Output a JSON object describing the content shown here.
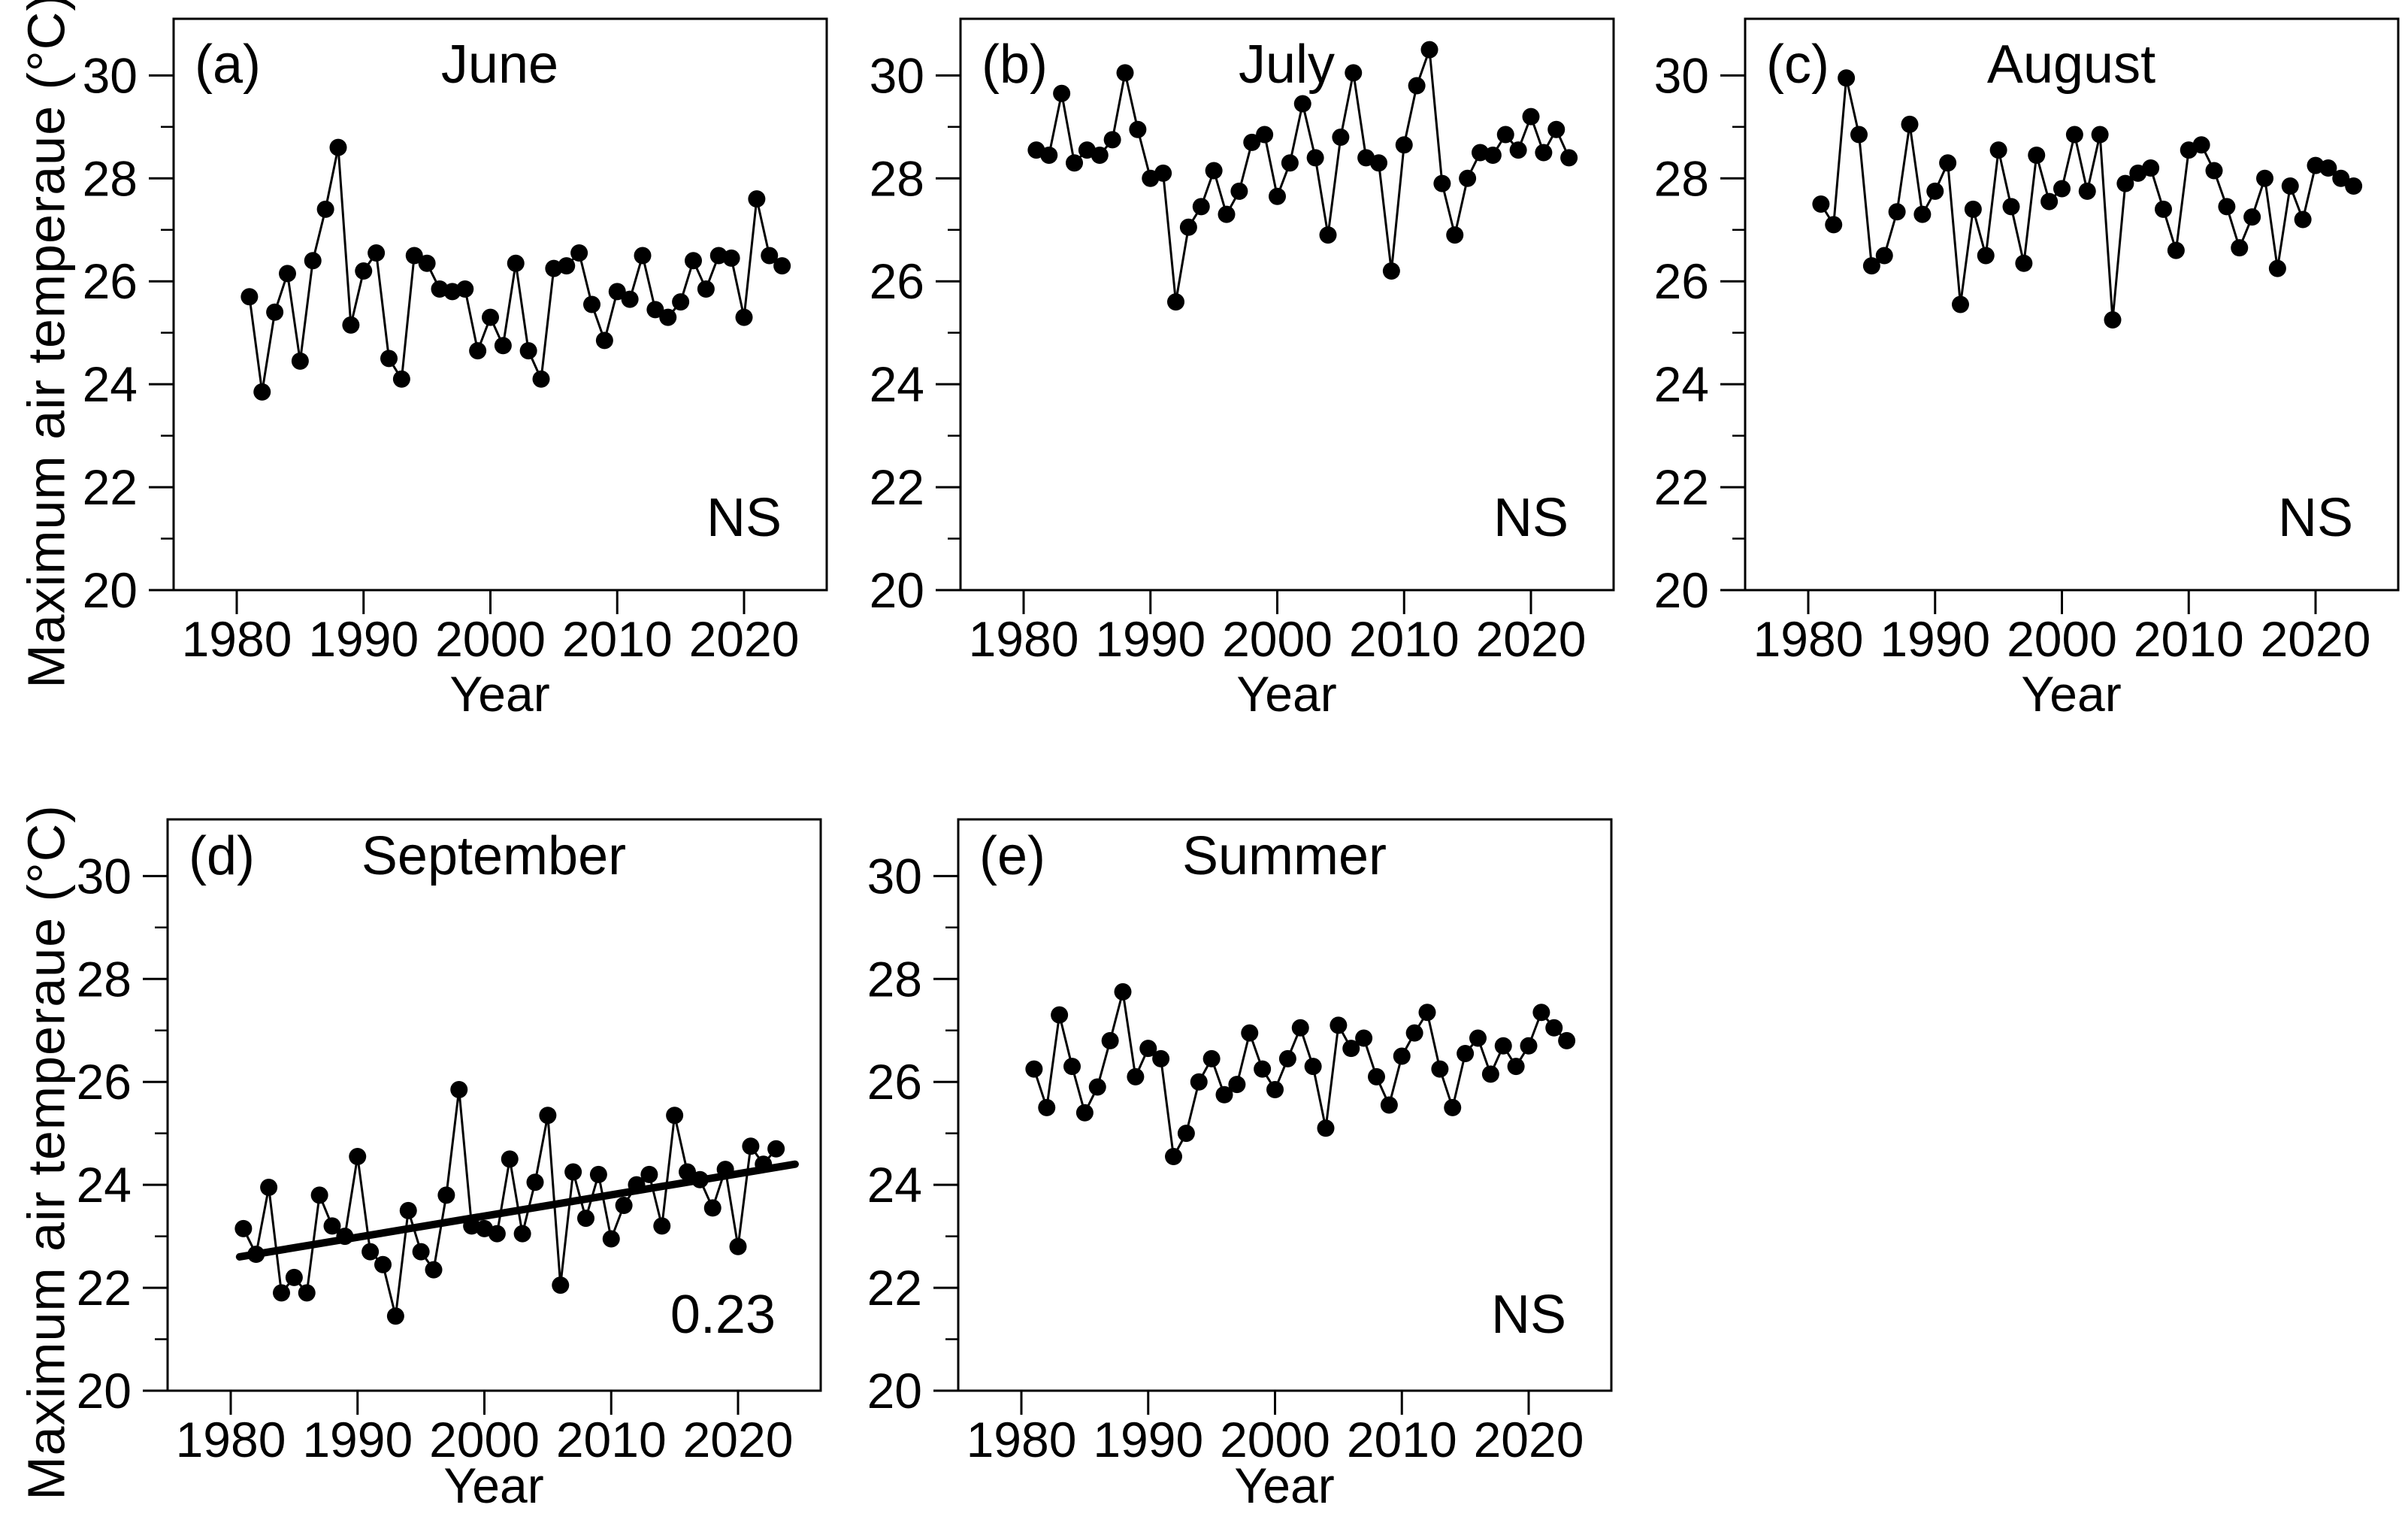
{
  "figure": {
    "y_axis_title": "Maximum air temperaue (°C)",
    "x_axis_title": "Year",
    "background_color": "#ffffff",
    "ink_color": "#000000",
    "years": [
      1981,
      1982,
      1983,
      1984,
      1985,
      1986,
      1987,
      1988,
      1989,
      1990,
      1991,
      1992,
      1993,
      1994,
      1995,
      1996,
      1997,
      1998,
      1999,
      2000,
      2001,
      2002,
      2003,
      2004,
      2005,
      2006,
      2007,
      2008,
      2009,
      2010,
      2011,
      2012,
      2013,
      2014,
      2015,
      2016,
      2017,
      2018,
      2019,
      2020,
      2021,
      2022,
      2023
    ]
  },
  "chart_data": [
    {
      "type": "line",
      "panel_label": "(a)",
      "title": "June",
      "annotation": "NS",
      "xlabel": "Year",
      "ylabel": "Maximum air temperaue (°C)",
      "x_ticks": [
        1980,
        1990,
        2000,
        2010,
        2020
      ],
      "y_ticks": [
        20,
        22,
        24,
        26,
        28,
        30
      ],
      "y_minor_ticks": [
        21,
        23,
        25,
        27,
        29
      ],
      "xlim": [
        1975,
        2026.5
      ],
      "ylim": [
        20,
        31.1
      ],
      "marker": "filled-circle",
      "values": [
        25.7,
        23.85,
        25.4,
        26.15,
        24.45,
        26.4,
        27.4,
        28.6,
        25.15,
        26.2,
        26.55,
        24.5,
        24.1,
        26.5,
        26.35,
        25.85,
        25.8,
        25.85,
        24.65,
        25.3,
        24.75,
        26.35,
        24.65,
        24.1,
        26.25,
        26.3,
        26.55,
        25.55,
        24.85,
        25.8,
        25.65,
        26.5,
        25.45,
        25.3,
        25.6,
        26.4,
        25.85,
        26.5,
        26.45,
        25.3,
        27.6,
        26.5,
        26.3
      ],
      "trend_line": null
    },
    {
      "type": "line",
      "panel_label": "(b)",
      "title": "July",
      "annotation": "NS",
      "xlabel": "Year",
      "ylabel": "Maximum air temperaue (°C)",
      "x_ticks": [
        1980,
        1990,
        2000,
        2010,
        2020
      ],
      "y_ticks": [
        20,
        22,
        24,
        26,
        28,
        30
      ],
      "y_minor_ticks": [
        21,
        23,
        25,
        27,
        29
      ],
      "xlim": [
        1975,
        2026.5
      ],
      "ylim": [
        20,
        31.1
      ],
      "marker": "filled-circle",
      "values": [
        28.55,
        28.45,
        29.65,
        28.3,
        28.55,
        28.45,
        28.75,
        30.05,
        28.95,
        28.0,
        28.1,
        25.6,
        27.05,
        27.45,
        28.15,
        27.3,
        27.75,
        28.7,
        28.85,
        27.65,
        28.3,
        29.45,
        28.4,
        26.9,
        28.8,
        30.05,
        28.4,
        28.3,
        26.2,
        28.65,
        29.8,
        30.5,
        27.9,
        26.9,
        28.0,
        28.5,
        28.45,
        28.85,
        28.55,
        29.2,
        28.5,
        28.95,
        28.4
      ],
      "trend_line": null
    },
    {
      "type": "line",
      "panel_label": "(c)",
      "title": "August",
      "annotation": "NS",
      "xlabel": "Year",
      "ylabel": "Maximum air temperaue (°C)",
      "x_ticks": [
        1980,
        1990,
        2000,
        2010,
        2020
      ],
      "y_ticks": [
        20,
        22,
        24,
        26,
        28,
        30
      ],
      "y_minor_ticks": [
        21,
        23,
        25,
        27,
        29
      ],
      "xlim": [
        1975,
        2026.5
      ],
      "ylim": [
        20,
        31.1
      ],
      "marker": "filled-circle",
      "values": [
        27.5,
        27.1,
        29.95,
        28.85,
        26.3,
        26.5,
        27.35,
        29.05,
        27.3,
        27.75,
        28.3,
        25.55,
        27.4,
        26.5,
        28.55,
        27.45,
        26.35,
        28.45,
        27.55,
        27.8,
        28.85,
        27.75,
        28.85,
        25.25,
        27.9,
        28.1,
        28.2,
        27.4,
        26.6,
        28.55,
        28.65,
        28.15,
        27.45,
        26.65,
        27.25,
        28.0,
        26.25,
        27.85,
        27.2,
        28.25,
        28.2,
        28.0,
        27.85
      ],
      "trend_line": null
    },
    {
      "type": "line",
      "panel_label": "(d)",
      "title": "September",
      "annotation": "0.23",
      "xlabel": "Year",
      "ylabel": "Maximum air temperaue (°C)",
      "x_ticks": [
        1980,
        1990,
        2000,
        2010,
        2020
      ],
      "y_ticks": [
        20,
        22,
        24,
        26,
        28,
        30
      ],
      "y_minor_ticks": [
        21,
        23,
        25,
        27,
        29
      ],
      "xlim": [
        1975,
        2026.5
      ],
      "ylim": [
        20,
        31.1
      ],
      "marker": "filled-circle",
      "values": [
        23.15,
        22.65,
        23.95,
        21.9,
        22.2,
        21.9,
        23.8,
        23.2,
        23.0,
        24.55,
        22.7,
        22.45,
        21.45,
        23.5,
        22.7,
        22.35,
        23.8,
        25.85,
        23.2,
        23.15,
        23.05,
        24.5,
        23.05,
        24.05,
        25.35,
        22.05,
        24.25,
        23.35,
        24.2,
        22.95,
        23.6,
        24.0,
        24.2,
        23.2,
        25.35,
        24.25,
        24.1,
        23.55,
        24.3,
        22.8,
        24.75,
        24.4,
        24.7
      ],
      "trend_line": {
        "x1": 1980.7,
        "y1": 22.6,
        "x2": 2024.5,
        "y2": 24.4,
        "slope_label": "0.23"
      }
    },
    {
      "type": "line",
      "panel_label": "(e)",
      "title": "Summer",
      "annotation": "NS",
      "xlabel": "Year",
      "ylabel": "Maximum air temperaue (°C)",
      "x_ticks": [
        1980,
        1990,
        2000,
        2010,
        2020
      ],
      "y_ticks": [
        20,
        22,
        24,
        26,
        28,
        30
      ],
      "y_minor_ticks": [
        21,
        23,
        25,
        27,
        29
      ],
      "xlim": [
        1975,
        2026.5
      ],
      "ylim": [
        20,
        31.1
      ],
      "marker": "filled-circle",
      "values": [
        26.25,
        25.5,
        27.3,
        26.3,
        25.4,
        25.9,
        26.8,
        27.75,
        26.1,
        26.65,
        26.45,
        24.55,
        25.0,
        26.0,
        26.45,
        25.75,
        25.95,
        26.95,
        26.25,
        25.85,
        26.45,
        27.05,
        26.3,
        25.1,
        27.1,
        26.65,
        26.85,
        26.1,
        25.55,
        26.5,
        26.95,
        27.35,
        26.25,
        25.5,
        26.55,
        26.85,
        26.15,
        26.7,
        26.3,
        26.7,
        27.35,
        27.05,
        26.8
      ],
      "trend_line": null
    }
  ]
}
